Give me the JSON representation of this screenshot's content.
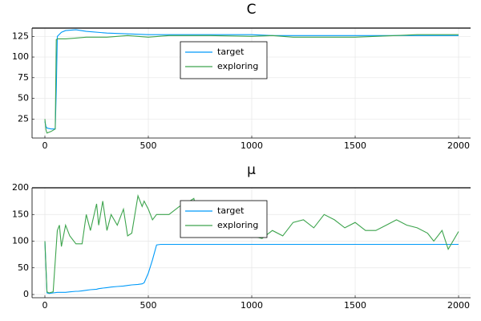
{
  "chart_data": [
    {
      "type": "line",
      "title": "C",
      "x": [
        0,
        5,
        10,
        30,
        50,
        55,
        60,
        80,
        100,
        150,
        200,
        300,
        400,
        500,
        600,
        800,
        1000,
        1100,
        1200,
        1500,
        1800,
        2000
      ],
      "series": [
        {
          "name": "target",
          "color": "#009af9",
          "values": [
            22,
            16,
            14,
            13,
            13,
            60,
            125,
            130,
            132,
            133,
            131,
            129,
            128,
            127,
            127,
            127,
            127,
            126,
            126,
            126,
            126,
            126
          ]
        },
        {
          "name": "exploring",
          "color": "#3da44d",
          "values": [
            25,
            12,
            8,
            10,
            13,
            121,
            122,
            122,
            122,
            123,
            124,
            124,
            126,
            124,
            126,
            126,
            125,
            126,
            124,
            124,
            127,
            127
          ]
        }
      ],
      "xlim": [
        -62,
        2058
      ],
      "xticks": [
        0,
        500,
        1000,
        1500,
        2000
      ],
      "ylim": [
        2,
        135
      ],
      "yticks": [
        25,
        50,
        75,
        100,
        125
      ],
      "grid": true,
      "legend": "top"
    },
    {
      "type": "line",
      "title": "μ",
      "x": [
        0,
        10,
        20,
        40,
        60,
        70,
        80,
        100,
        120,
        150,
        160,
        180,
        200,
        220,
        250,
        260,
        280,
        300,
        320,
        350,
        380,
        400,
        420,
        450,
        470,
        480,
        500,
        520,
        540,
        560,
        600,
        650,
        700,
        720,
        750,
        800,
        850,
        900,
        950,
        1000,
        1050,
        1100,
        1150,
        1200,
        1250,
        1300,
        1350,
        1400,
        1450,
        1500,
        1550,
        1600,
        1650,
        1700,
        1750,
        1800,
        1850,
        1880,
        1900,
        1920,
        1950,
        2000
      ],
      "series": [
        {
          "name": "target",
          "color": "#009af9",
          "values": [
            100,
            3,
            2,
            3,
            4,
            4,
            4,
            4,
            5,
            6,
            6,
            7,
            8,
            9,
            10,
            11,
            12,
            13,
            14,
            15,
            16,
            17,
            18,
            19,
            20,
            22,
            40,
            65,
            93,
            94,
            94,
            94,
            94,
            94,
            94,
            94,
            94,
            94,
            94,
            94,
            94,
            94,
            94,
            94,
            94,
            94,
            94,
            94,
            94,
            94,
            94,
            94,
            94,
            94,
            94,
            94,
            94,
            94,
            94,
            94,
            94,
            94
          ]
        },
        {
          "name": "exploring",
          "color": "#3da44d",
          "values": [
            100,
            5,
            3,
            5,
            120,
            130,
            90,
            130,
            110,
            95,
            95,
            95,
            150,
            120,
            170,
            130,
            175,
            120,
            150,
            130,
            160,
            110,
            115,
            185,
            165,
            175,
            160,
            140,
            150,
            150,
            150,
            165,
            175,
            180,
            130,
            140,
            130,
            140,
            120,
            110,
            105,
            120,
            110,
            135,
            140,
            125,
            150,
            140,
            125,
            135,
            120,
            120,
            130,
            140,
            130,
            125,
            115,
            100,
            110,
            120,
            85,
            118
          ]
        }
      ],
      "xlim": [
        -62,
        2058
      ],
      "xticks": [
        0,
        500,
        1000,
        1500,
        2000
      ],
      "ylim": [
        -6,
        200
      ],
      "yticks": [
        0,
        50,
        100,
        150,
        200
      ],
      "grid": true,
      "legend": "top"
    }
  ]
}
